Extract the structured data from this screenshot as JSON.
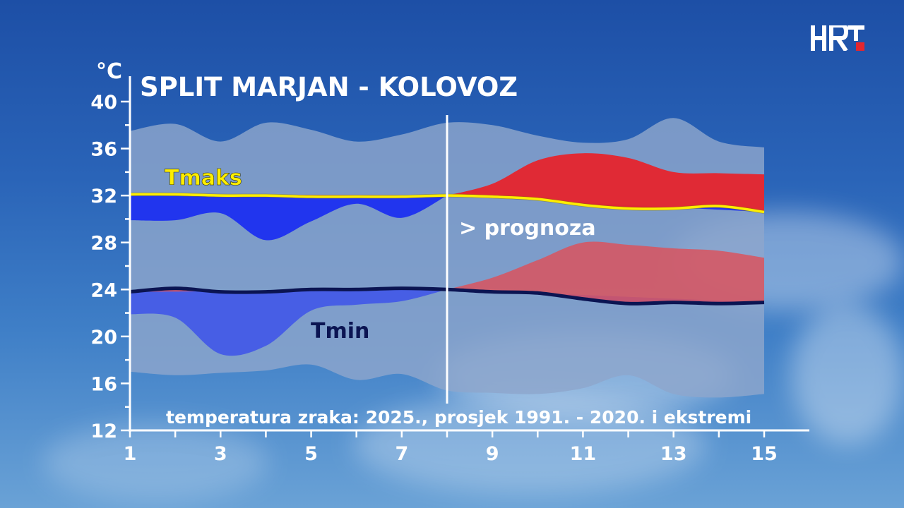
{
  "logo": "HRT",
  "chart_data": {
    "type": "area",
    "title": "SPLIT MARJAN - KOLOVOZ",
    "subtitle": "temperatura zraka: 2025., prosjek 1991. - 2020. i ekstremi",
    "ylabel": "°C",
    "ylim": [
      12,
      40
    ],
    "yticks": [
      12,
      16,
      20,
      24,
      28,
      32,
      36,
      40
    ],
    "xlim": [
      1,
      15
    ],
    "xticks": [
      1,
      3,
      5,
      7,
      9,
      11,
      13,
      15
    ],
    "annotation": "> prognoza",
    "forecast_start_day": 8,
    "colors": {
      "extremes_band": "#8ea6cc",
      "above_avg": "#e3262f",
      "above_avg_min": "#d9535e",
      "below_avg_max": "#1c2ff0",
      "below_avg_min": "#3d52ea",
      "tmaks_line": "#ffee00",
      "tmin_line": "#0b1452",
      "divider": "#ffffff"
    },
    "series": [
      {
        "name": "Tmaks",
        "x": [
          1,
          2,
          3,
          4,
          5,
          6,
          7,
          8,
          9,
          10,
          11,
          12,
          13,
          14,
          15
        ],
        "values": [
          32.1,
          32.1,
          32.0,
          32.0,
          31.9,
          31.9,
          31.9,
          32.0,
          31.9,
          31.7,
          31.2,
          30.9,
          30.9,
          31.1,
          30.6
        ]
      },
      {
        "name": "Tmin",
        "x": [
          1,
          2,
          3,
          4,
          5,
          6,
          7,
          8,
          9,
          10,
          11,
          12,
          13,
          14,
          15
        ],
        "values": [
          23.8,
          24.1,
          23.8,
          23.8,
          24.0,
          24.0,
          24.1,
          24.0,
          23.8,
          23.7,
          23.2,
          22.8,
          22.9,
          22.8,
          22.9
        ]
      },
      {
        "x": [
          1,
          2,
          3,
          4,
          5,
          6,
          7,
          8,
          9,
          10,
          11,
          12,
          13,
          14,
          15
        ],
        "values": [
          37.5,
          38.1,
          36.6,
          38.2,
          37.6,
          36.6,
          37.2,
          38.2,
          38.0,
          37.1,
          36.5,
          36.8,
          38.6,
          36.6,
          36.1
        ]
      },
      {
        "x": [
          1,
          2,
          3,
          4,
          5,
          6,
          7,
          8,
          9,
          10,
          11,
          12,
          13,
          14,
          15
        ],
        "values": [
          17.0,
          16.7,
          16.9,
          17.1,
          17.6,
          16.3,
          16.8,
          15.4,
          15.2,
          15.1,
          15.6,
          16.7,
          15.1,
          14.8,
          15.1
        ]
      },
      {
        "x": [
          1,
          2,
          3,
          4,
          5,
          6,
          7,
          8
        ],
        "values": [
          29.9,
          29.9,
          30.5,
          28.2,
          29.8,
          31.3,
          30.1,
          32.0
        ]
      },
      {
        "x": [
          1,
          2,
          3,
          4,
          5,
          6,
          7,
          8
        ],
        "values": [
          21.9,
          21.6,
          18.5,
          19.2,
          22.2,
          22.7,
          23.0,
          24.0
        ]
      },
      {
        "x": [
          8,
          9,
          10,
          11,
          12,
          13,
          14,
          15
        ],
        "values": [
          32.0,
          33.0,
          35.0,
          35.6,
          35.2,
          34.0,
          33.9,
          33.8
        ]
      },
      {
        "x": [
          8,
          9,
          10,
          11,
          12,
          13,
          14,
          15
        ],
        "values": [
          24.0,
          25.0,
          26.5,
          28.0,
          27.8,
          27.5,
          27.3,
          26.7
        ]
      }
    ]
  }
}
